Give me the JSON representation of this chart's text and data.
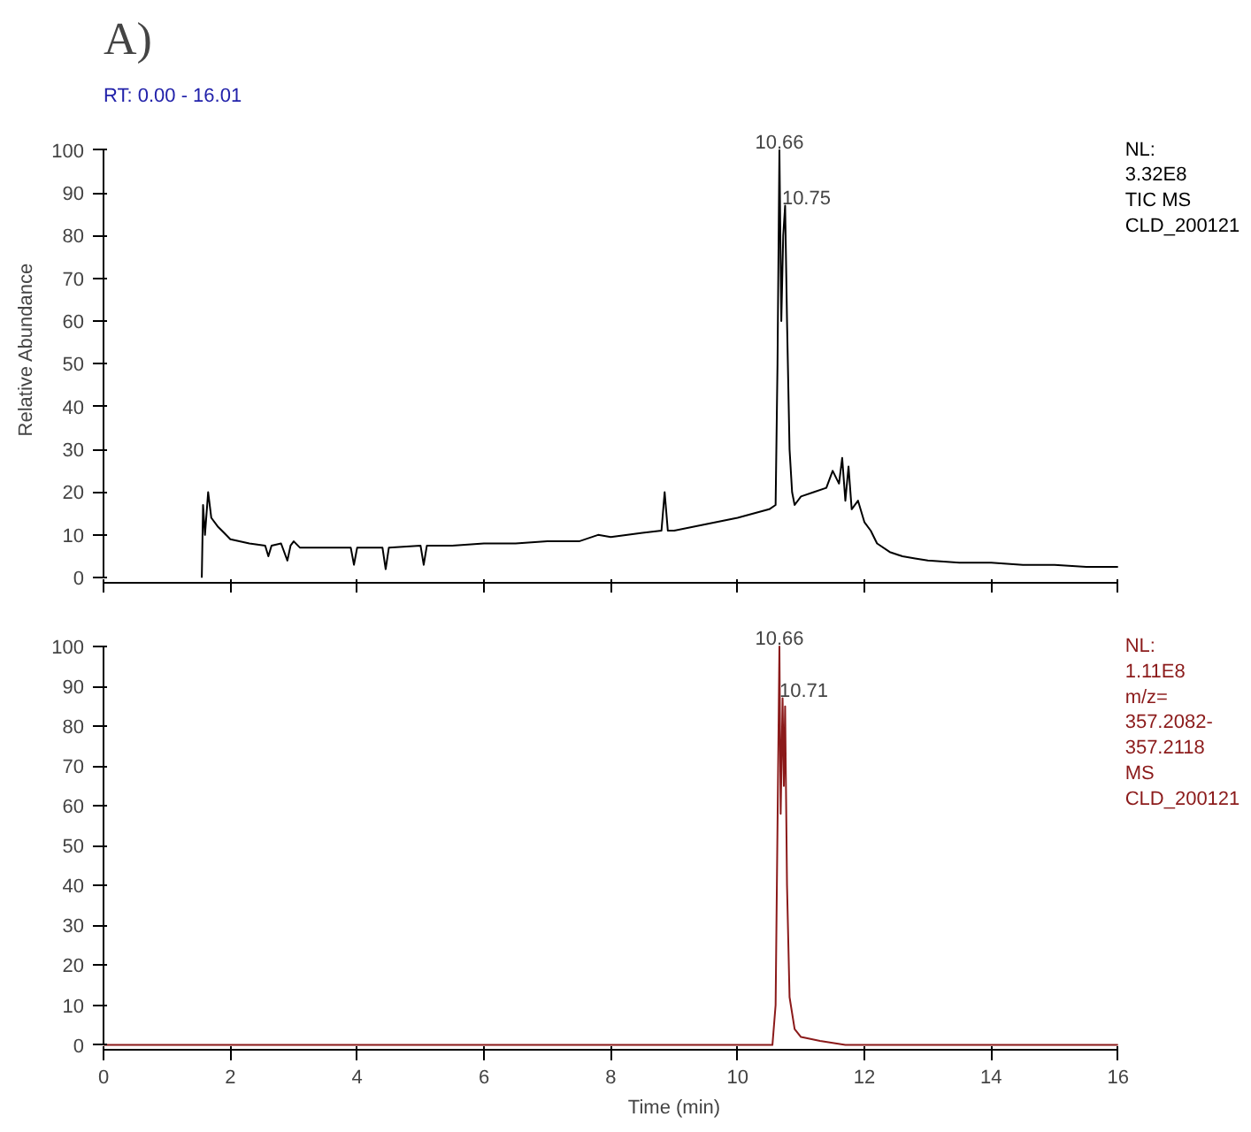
{
  "chart_data": [
    {
      "type": "line",
      "title": "A)",
      "subtitle": "RT: 0.00 - 16.01",
      "ylabel": "Relative Abundance",
      "xlim": [
        0,
        16
      ],
      "xticks": [
        0,
        2,
        4,
        6,
        8,
        10,
        12,
        14,
        16
      ],
      "ylim": [
        0,
        100
      ],
      "yticks": [
        0,
        10,
        20,
        30,
        40,
        50,
        60,
        70,
        80,
        90,
        100
      ],
      "tick_labels": "y",
      "grid": false,
      "series": [
        {
          "color": "#000000",
          "x": [
            1.55,
            1.57,
            1.6,
            1.65,
            1.7,
            1.8,
            2.0,
            2.3,
            2.55,
            2.6,
            2.65,
            2.8,
            2.9,
            2.95,
            3.0,
            3.1,
            3.5,
            3.9,
            3.95,
            4.0,
            4.4,
            4.45,
            4.5,
            5.0,
            5.05,
            5.1,
            5.5,
            6.0,
            6.5,
            7.0,
            7.5,
            7.8,
            8.0,
            8.5,
            8.8,
            8.85,
            8.9,
            9.0,
            9.5,
            10.0,
            10.5,
            10.6,
            10.63,
            10.66,
            10.69,
            10.72,
            10.75,
            10.78,
            10.82,
            10.86,
            10.9,
            11.0,
            11.2,
            11.4,
            11.5,
            11.6,
            11.65,
            11.7,
            11.75,
            11.8,
            11.9,
            12.0,
            12.1,
            12.2,
            12.4,
            12.6,
            12.8,
            13.0,
            13.5,
            14.0,
            14.5,
            15.0,
            15.5,
            16.0
          ],
          "values": [
            0,
            17,
            10,
            20,
            14,
            12,
            9,
            8,
            7.5,
            5,
            7.5,
            8,
            4,
            7.5,
            8.5,
            7,
            7,
            7,
            3,
            7,
            7,
            2,
            7,
            7.5,
            3,
            7.5,
            7.5,
            8,
            8,
            8.5,
            8.5,
            10,
            9.5,
            10.5,
            11,
            20,
            11,
            11,
            12.5,
            14,
            16,
            17,
            50,
            100,
            60,
            80,
            87,
            60,
            30,
            20,
            17,
            19,
            20,
            21,
            25,
            22,
            28,
            18,
            26,
            16,
            18,
            13,
            11,
            8,
            6,
            5,
            4.5,
            4,
            3.5,
            3.5,
            3,
            3,
            2.5,
            2.5
          ]
        }
      ],
      "annotations": [
        {
          "text": "10.66",
          "x": 10.66,
          "y": 100
        },
        {
          "text": "10.75",
          "x": 10.75,
          "y": 87
        },
        "NL:\n3.32E8\nTIC  MS\nCLD_200121"
      ]
    },
    {
      "type": "line",
      "xlabel": "Time (min)",
      "xlim": [
        0,
        16
      ],
      "xticks": [
        0,
        2,
        4,
        6,
        8,
        10,
        12,
        14,
        16
      ],
      "ylim": [
        0,
        100
      ],
      "yticks": [
        0,
        10,
        20,
        30,
        40,
        50,
        60,
        70,
        80,
        90,
        100
      ],
      "grid": false,
      "series": [
        {
          "color": "#8b1a1a",
          "x": [
            0,
            10.55,
            10.6,
            10.64,
            10.66,
            10.68,
            10.71,
            10.73,
            10.75,
            10.78,
            10.82,
            10.9,
            11.0,
            11.3,
            11.7,
            16.0
          ],
          "values": [
            0,
            0,
            10,
            70,
            100,
            58,
            87,
            65,
            85,
            40,
            12,
            4,
            2,
            1,
            0,
            0
          ]
        }
      ],
      "annotations": [
        {
          "text": "10.66",
          "x": 10.66,
          "y": 100
        },
        {
          "text": "10.71",
          "x": 10.71,
          "y": 87
        },
        "NL:\n1.11E8\nm/z=\n357.2082-\n357.2118\nMS\nCLD_200121"
      ]
    }
  ]
}
